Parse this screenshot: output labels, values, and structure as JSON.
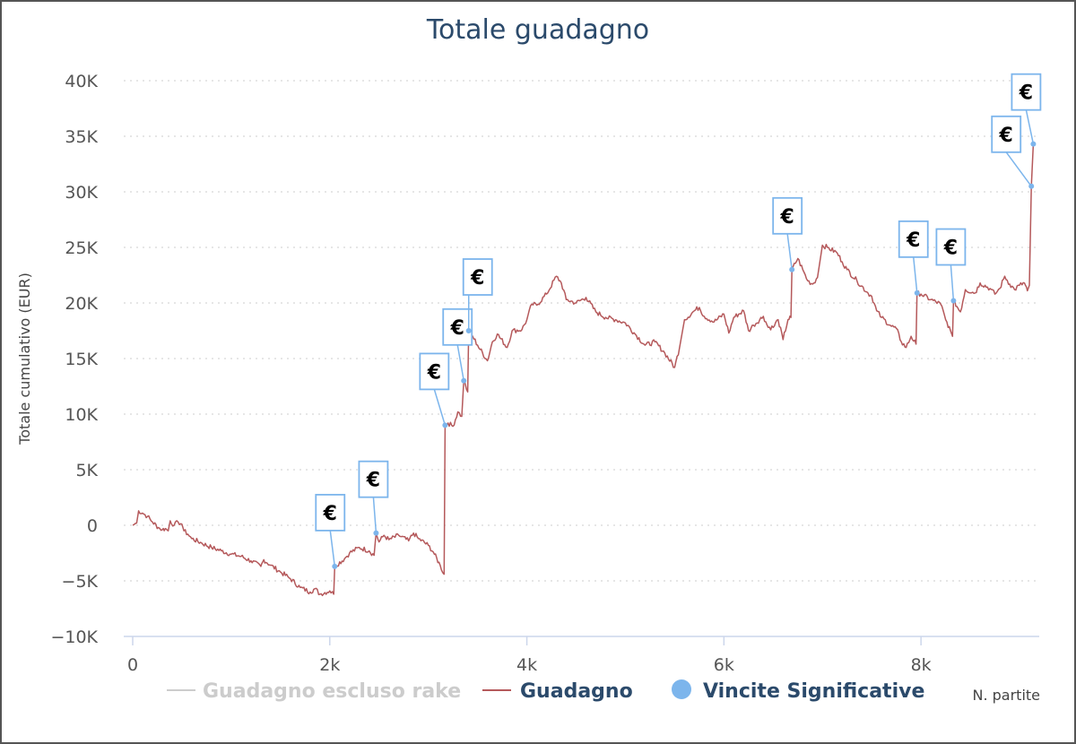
{
  "chart_data": {
    "type": "line",
    "title": "Totale guadagno",
    "xlabel": "N. partite",
    "ylabel": "Totale cumulativo (EUR)",
    "xlim": [
      0,
      9200
    ],
    "ylim": [
      -10000,
      40000
    ],
    "x_ticks": [
      {
        "value": 0,
        "label": "0"
      },
      {
        "value": 2000,
        "label": "2k"
      },
      {
        "value": 4000,
        "label": "4k"
      },
      {
        "value": 6000,
        "label": "6k"
      },
      {
        "value": 8000,
        "label": "8k"
      }
    ],
    "y_ticks": [
      {
        "value": 40000,
        "label": "40K"
      },
      {
        "value": 35000,
        "label": "35K"
      },
      {
        "value": 30000,
        "label": "30K"
      },
      {
        "value": 25000,
        "label": "25K"
      },
      {
        "value": 20000,
        "label": "20K"
      },
      {
        "value": 15000,
        "label": "15K"
      },
      {
        "value": 10000,
        "label": "10K"
      },
      {
        "value": 5000,
        "label": "5K"
      },
      {
        "value": 0,
        "label": "0"
      },
      {
        "value": -5000,
        "label": "−5K"
      },
      {
        "value": -10000,
        "label": "−10K"
      }
    ],
    "grid": "horizontal dotted",
    "legend_position": "bottom",
    "series": [
      {
        "name": "Guadagno escluso rake",
        "color": "#cccccc",
        "hidden": true,
        "points": []
      },
      {
        "name": "Guadagno",
        "color": "#b5595b",
        "points": [
          [
            0,
            0
          ],
          [
            40,
            200
          ],
          [
            60,
            1300
          ],
          [
            100,
            1100
          ],
          [
            150,
            800
          ],
          [
            200,
            300
          ],
          [
            260,
            -200
          ],
          [
            300,
            -400
          ],
          [
            330,
            -300
          ],
          [
            360,
            -500
          ],
          [
            380,
            400
          ],
          [
            420,
            0
          ],
          [
            460,
            300
          ],
          [
            500,
            100
          ],
          [
            520,
            -500
          ],
          [
            560,
            -800
          ],
          [
            600,
            -1200
          ],
          [
            700,
            -1600
          ],
          [
            800,
            -2000
          ],
          [
            900,
            -2300
          ],
          [
            1000,
            -2600
          ],
          [
            1100,
            -2800
          ],
          [
            1200,
            -3200
          ],
          [
            1300,
            -3700
          ],
          [
            1330,
            -3100
          ],
          [
            1400,
            -3600
          ],
          [
            1500,
            -4200
          ],
          [
            1600,
            -4800
          ],
          [
            1700,
            -5600
          ],
          [
            1800,
            -6000
          ],
          [
            1850,
            -5700
          ],
          [
            1900,
            -6200
          ],
          [
            2000,
            -5900
          ],
          [
            2040,
            -6200
          ],
          [
            2050,
            -3700
          ],
          [
            2150,
            -3000
          ],
          [
            2200,
            -2500
          ],
          [
            2300,
            -2000
          ],
          [
            2400,
            -2300
          ],
          [
            2450,
            -2700
          ],
          [
            2470,
            -700
          ],
          [
            2500,
            -1500
          ],
          [
            2550,
            -900
          ],
          [
            2600,
            -1300
          ],
          [
            2700,
            -900
          ],
          [
            2800,
            -1400
          ],
          [
            2850,
            -700
          ],
          [
            2900,
            -1200
          ],
          [
            3000,
            -1800
          ],
          [
            3050,
            -2400
          ],
          [
            3120,
            -3600
          ],
          [
            3160,
            -4400
          ],
          [
            3170,
            9000
          ],
          [
            3200,
            9200
          ],
          [
            3250,
            8900
          ],
          [
            3300,
            10200
          ],
          [
            3340,
            9800
          ],
          [
            3360,
            13000
          ],
          [
            3400,
            12000
          ],
          [
            3410,
            17500
          ],
          [
            3450,
            17000
          ],
          [
            3500,
            16200
          ],
          [
            3600,
            14800
          ],
          [
            3650,
            16500
          ],
          [
            3700,
            17200
          ],
          [
            3800,
            16000
          ],
          [
            3850,
            17500
          ],
          [
            3950,
            17600
          ],
          [
            4000,
            18500
          ],
          [
            4050,
            19900
          ],
          [
            4100,
            19800
          ],
          [
            4200,
            20800
          ],
          [
            4300,
            22400
          ],
          [
            4350,
            21800
          ],
          [
            4400,
            20300
          ],
          [
            4500,
            20000
          ],
          [
            4600,
            20500
          ],
          [
            4700,
            19200
          ],
          [
            4800,
            18700
          ],
          [
            4900,
            18500
          ],
          [
            5000,
            18200
          ],
          [
            5100,
            17200
          ],
          [
            5200,
            16200
          ],
          [
            5300,
            16500
          ],
          [
            5400,
            15500
          ],
          [
            5500,
            14200
          ],
          [
            5550,
            16000
          ],
          [
            5600,
            18500
          ],
          [
            5700,
            19300
          ],
          [
            5750,
            19600
          ],
          [
            5800,
            18800
          ],
          [
            5900,
            18300
          ],
          [
            6000,
            19000
          ],
          [
            6050,
            17300
          ],
          [
            6100,
            18700
          ],
          [
            6200,
            19300
          ],
          [
            6250,
            17500
          ],
          [
            6300,
            18000
          ],
          [
            6400,
            18800
          ],
          [
            6450,
            17800
          ],
          [
            6500,
            17800
          ],
          [
            6550,
            18500
          ],
          [
            6600,
            16700
          ],
          [
            6650,
            18500
          ],
          [
            6680,
            18700
          ],
          [
            6690,
            23000
          ],
          [
            6750,
            24000
          ],
          [
            6800,
            23000
          ],
          [
            6850,
            22000
          ],
          [
            6900,
            21700
          ],
          [
            6950,
            22300
          ],
          [
            7000,
            25200
          ],
          [
            7050,
            25000
          ],
          [
            7150,
            24500
          ],
          [
            7200,
            23700
          ],
          [
            7250,
            23000
          ],
          [
            7350,
            22000
          ],
          [
            7450,
            21000
          ],
          [
            7500,
            20600
          ],
          [
            7550,
            19300
          ],
          [
            7600,
            18700
          ],
          [
            7700,
            17900
          ],
          [
            7750,
            17700
          ],
          [
            7800,
            16500
          ],
          [
            7850,
            16000
          ],
          [
            7900,
            17000
          ],
          [
            7950,
            16300
          ],
          [
            7960,
            20900
          ],
          [
            8000,
            20800
          ],
          [
            8100,
            20300
          ],
          [
            8200,
            19900
          ],
          [
            8250,
            18500
          ],
          [
            8300,
            17500
          ],
          [
            8320,
            17000
          ],
          [
            8330,
            20200
          ],
          [
            8400,
            19200
          ],
          [
            8450,
            21200
          ],
          [
            8550,
            20900
          ],
          [
            8600,
            21800
          ],
          [
            8700,
            21300
          ],
          [
            8750,
            20800
          ],
          [
            8800,
            21300
          ],
          [
            8850,
            22400
          ],
          [
            8900,
            21700
          ],
          [
            8950,
            21200
          ],
          [
            9000,
            21600
          ],
          [
            9050,
            21800
          ],
          [
            9080,
            21100
          ],
          [
            9100,
            21600
          ],
          [
            9120,
            30500
          ],
          [
            9140,
            34300
          ]
        ]
      },
      {
        "name": "Vincite Significative",
        "color": "#7cb5ec",
        "marker": "circle",
        "flag_label": "€",
        "points": [
          [
            2050,
            -3700
          ],
          [
            2470,
            -700
          ],
          [
            3170,
            9000
          ],
          [
            3360,
            13000
          ],
          [
            3410,
            17500
          ],
          [
            6690,
            23000
          ],
          [
            7960,
            20900
          ],
          [
            8330,
            20200
          ],
          [
            9120,
            30500
          ],
          [
            9140,
            34300
          ]
        ]
      }
    ]
  }
}
